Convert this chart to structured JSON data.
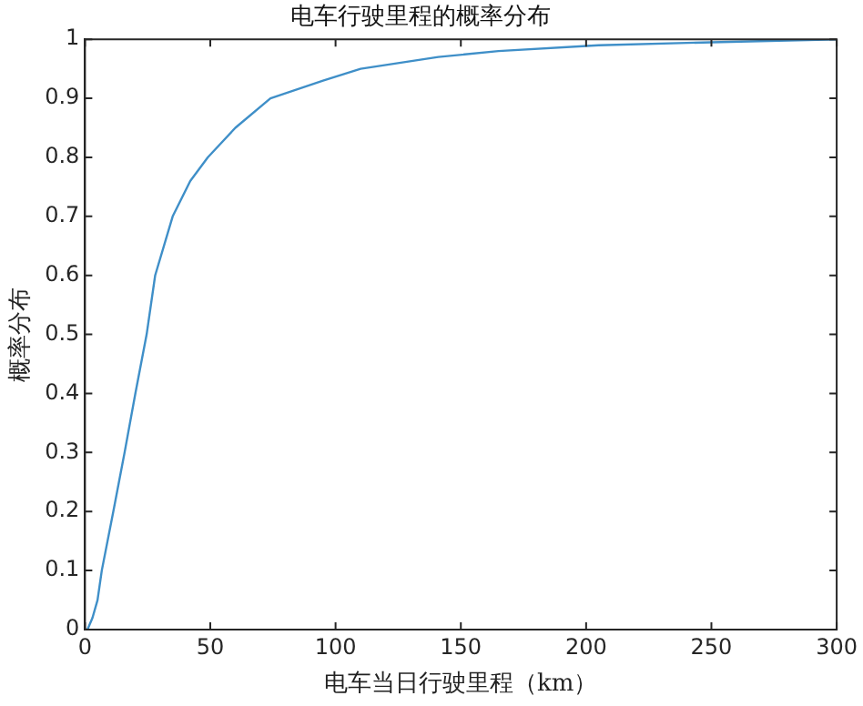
{
  "chart_data": {
    "type": "line",
    "title": "电车行驶里程的概率分布",
    "xlabel": "电车当日行驶里程（km）",
    "ylabel": "概率分布",
    "series": [
      {
        "color": "#3f8fc8",
        "x": [
          0,
          1,
          3,
          5,
          6.7,
          11.3,
          15.8,
          20.1,
          24.6,
          28,
          35,
          42,
          49,
          60,
          74,
          95,
          110,
          141,
          165,
          205,
          250,
          300
        ],
        "values": [
          0,
          0,
          0.02,
          0.05,
          0.1,
          0.2,
          0.3,
          0.4,
          0.5,
          0.6,
          0.7,
          0.76,
          0.8,
          0.85,
          0.9,
          0.93,
          0.95,
          0.97,
          0.98,
          0.99,
          0.995,
          1
        ]
      }
    ],
    "xlim": [
      0,
      300
    ],
    "xticks": [
      0,
      50,
      100,
      150,
      200,
      250,
      300
    ],
    "ylim": [
      0,
      1
    ],
    "yticks": [
      0,
      0.1,
      0.2,
      0.3,
      0.4,
      0.5,
      0.6,
      0.7,
      0.8,
      0.9,
      1
    ],
    "grid": false,
    "legend": false,
    "marker": "none",
    "line_style": "solid"
  }
}
